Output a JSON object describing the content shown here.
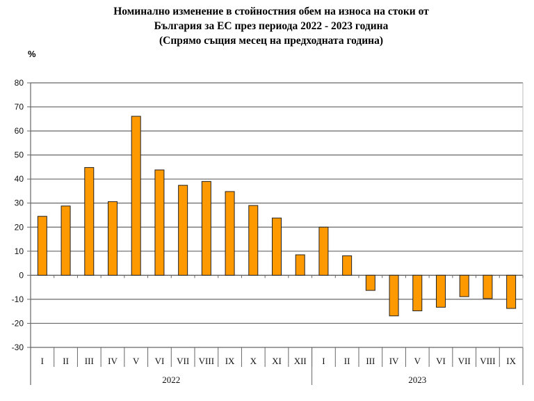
{
  "chart_data": {
    "type": "bar",
    "title_lines": [
      "Номинално изменение в стойностния обем на износа на стоки от",
      "България за ЕС през периода 2022 - 2023 година",
      "(Спрямо същия месец на предходната година)"
    ],
    "ylabel": "%",
    "ylim": [
      -30,
      80
    ],
    "yticks": [
      80,
      70,
      60,
      50,
      40,
      30,
      20,
      10,
      0,
      -10,
      -20,
      -30
    ],
    "grid": true,
    "categories": [
      "I",
      "II",
      "III",
      "IV",
      "V",
      "VI",
      "VII",
      "VIII",
      "IX",
      "X",
      "XI",
      "XII",
      "I",
      "II",
      "III",
      "IV",
      "V",
      "VI",
      "VII",
      "VIII",
      "IX"
    ],
    "groups": [
      {
        "label": "2022",
        "count": 12
      },
      {
        "label": "2023",
        "count": 9
      }
    ],
    "values": [
      24.5,
      28.8,
      44.8,
      30.6,
      66.1,
      43.8,
      37.4,
      39.0,
      34.8,
      29.0,
      23.8,
      8.5,
      20.0,
      8.1,
      -6.3,
      -16.9,
      -14.8,
      -13.3,
      -8.9,
      -9.7,
      -13.8
    ],
    "bar_color": "#FF9900"
  }
}
